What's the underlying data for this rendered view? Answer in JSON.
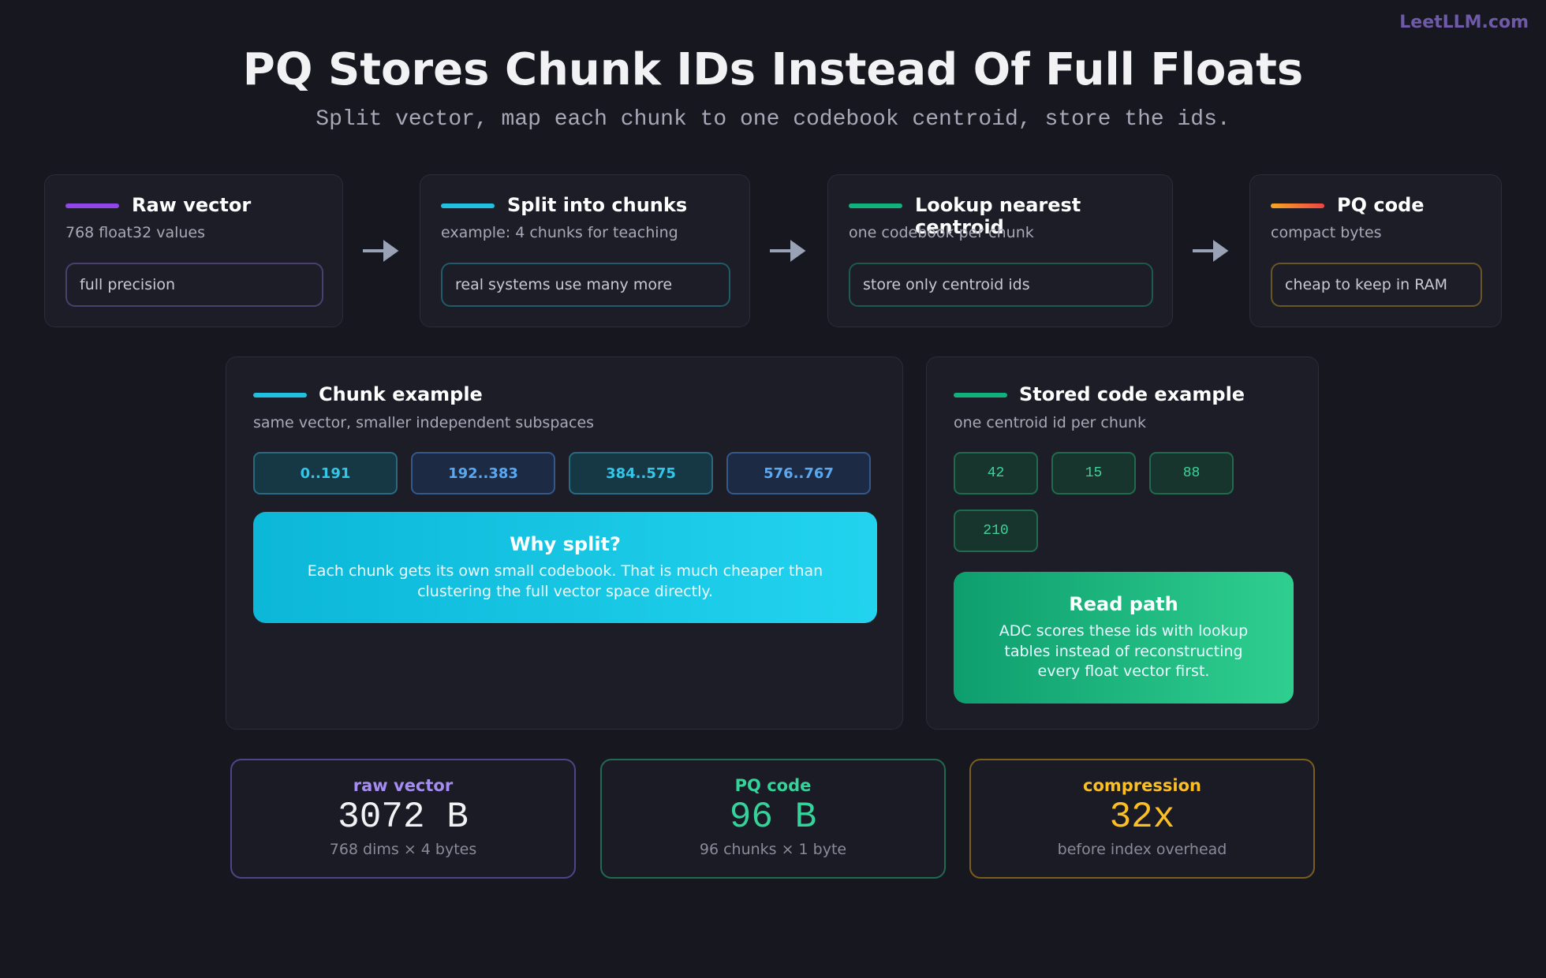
{
  "brand": "LeetLLM.com",
  "header": {
    "title": "PQ Stores Chunk IDs Instead Of Full Floats",
    "subtitle": "Split vector, map each chunk to one codebook centroid, store the ids."
  },
  "steps": [
    {
      "title": "Raw vector",
      "subtitle": "768 float32 values",
      "note": "full precision"
    },
    {
      "title": "Split into chunks",
      "subtitle": "example: 4 chunks for teaching",
      "note": "real systems use many more"
    },
    {
      "title": "Lookup nearest centroid",
      "subtitle": "one codebook per chunk",
      "note": "store only centroid ids"
    },
    {
      "title": "PQ code",
      "subtitle": "compact bytes",
      "note": "cheap to keep in RAM"
    }
  ],
  "chunk_example": {
    "title": "Chunk example",
    "subtitle": "same vector, smaller independent subspaces",
    "chunks": [
      "0..191",
      "192..383",
      "384..575",
      "576..767"
    ],
    "callout": {
      "title": "Why split?",
      "text": "Each chunk gets its own small codebook. That is much cheaper than clustering the full vector space directly."
    }
  },
  "code_example": {
    "title": "Stored code example",
    "subtitle": "one centroid id per chunk",
    "ids": [
      "42",
      "15",
      "88",
      "210"
    ],
    "callout": {
      "title": "Read path",
      "text": "ADC scores these ids with lookup tables instead of reconstructing every float vector first."
    }
  },
  "stats": [
    {
      "label": "raw vector",
      "value": "3072 B",
      "note": "768 dims × 4 bytes"
    },
    {
      "label": "PQ code",
      "value": "96 B",
      "note": "96 chunks × 1 byte"
    },
    {
      "label": "compression",
      "value": "32x",
      "note": "before index overhead"
    }
  ]
}
